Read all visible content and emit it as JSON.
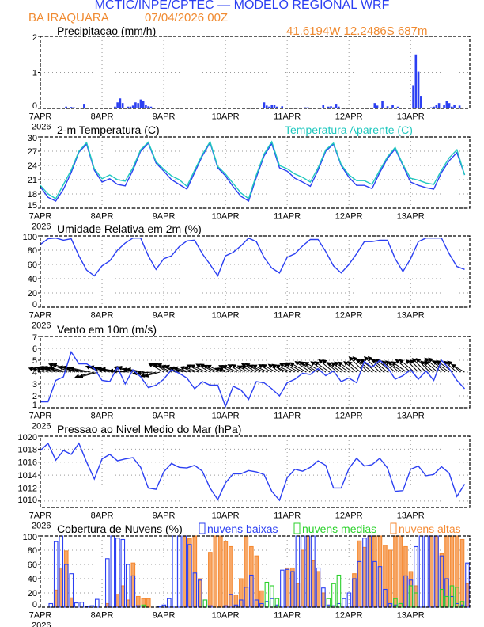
{
  "header": {
    "title": "MCTIC/INPE/CPTEC — MODELO REGIONAL WRF",
    "location": "BA IRAQUARA",
    "run": "07/04/2026 00Z",
    "coords": "41.6194W 12.2486S 687m"
  },
  "x_axis": {
    "days": [
      "7APR",
      "8APR",
      "9APR",
      "10APR",
      "11APR",
      "12APR",
      "13APR"
    ],
    "year": "2026",
    "hours_range": [
      0,
      167
    ]
  },
  "colors": {
    "blue": "#2b3ff2",
    "cyan": "#21c8bf",
    "orange": "#f58a33",
    "green": "#2bd12b",
    "title_blue": "#2b3ff2",
    "title_orange": "#f08a30"
  },
  "chart_data": [
    {
      "type": "bar",
      "title": "Precipitacao (mm/h)",
      "ylabel": "mm/h",
      "ylim": [
        0,
        2
      ],
      "yticks": [
        "0",
        "1",
        "2"
      ],
      "ytick_values": [
        0,
        1,
        2
      ],
      "bars": [
        [
          10,
          0.05
        ],
        [
          12,
          0.04
        ],
        [
          13,
          0.03
        ],
        [
          17,
          0.13
        ],
        [
          29,
          0.05
        ],
        [
          30,
          0.17
        ],
        [
          31,
          0.28
        ],
        [
          32,
          0.15
        ],
        [
          34,
          0.05
        ],
        [
          35,
          0.05
        ],
        [
          36,
          0.08
        ],
        [
          37,
          0.17
        ],
        [
          38,
          0.15
        ],
        [
          39,
          0.25
        ],
        [
          40,
          0.22
        ],
        [
          41,
          0.1
        ],
        [
          42,
          0.06
        ],
        [
          43,
          0.05
        ],
        [
          57,
          0.02
        ],
        [
          62,
          0.02
        ],
        [
          68,
          0.02
        ],
        [
          87,
          0.17
        ],
        [
          88,
          0.08
        ],
        [
          89,
          0.05
        ],
        [
          90,
          0.1
        ],
        [
          91,
          0.1
        ],
        [
          92,
          0.05
        ],
        [
          94,
          0.06
        ],
        [
          103,
          0.03
        ],
        [
          104,
          0.03
        ],
        [
          110,
          0.1
        ],
        [
          112,
          0.05
        ],
        [
          113,
          0.06
        ],
        [
          114,
          0.03
        ],
        [
          115,
          0.13
        ],
        [
          116,
          0.05
        ],
        [
          130,
          0.15
        ],
        [
          131,
          0.08
        ],
        [
          133,
          0.22
        ],
        [
          135,
          0.06
        ],
        [
          137,
          0.1
        ],
        [
          139,
          0.05
        ],
        [
          145,
          0.65
        ],
        [
          146,
          1.5
        ],
        [
          147,
          1.02
        ],
        [
          148,
          0.35
        ],
        [
          152,
          0.03
        ],
        [
          153,
          0.05
        ],
        [
          154,
          0.1
        ],
        [
          155,
          0.15
        ],
        [
          157,
          0.1
        ],
        [
          158,
          0.2
        ],
        [
          159,
          0.15
        ],
        [
          160,
          0.05
        ],
        [
          161,
          0.1
        ],
        [
          163,
          0.08
        ]
      ]
    },
    {
      "type": "line",
      "title": "2-m Temperatura (C)",
      "ylim": [
        15,
        30
      ],
      "yticks": [
        "15",
        "18",
        "21",
        "24",
        "27",
        "30"
      ],
      "ytick_values": [
        15,
        18,
        21,
        24,
        27,
        30
      ],
      "x_step_hours": 3,
      "series": [
        {
          "name": "2-m Temperatura (C)",
          "color": "#2b3ff2",
          "values": [
            19.5,
            17.3,
            16.5,
            19.0,
            22.5,
            26.8,
            28.5,
            23.0,
            20.5,
            21.2,
            20.0,
            19.7,
            23.0,
            27.0,
            28.7,
            24.5,
            22.8,
            21.0,
            20.0,
            19.0,
            22.5,
            26.0,
            28.8,
            23.5,
            21.8,
            19.5,
            17.5,
            16.5,
            21.5,
            26.0,
            28.6,
            23.5,
            22.8,
            21.3,
            20.5,
            19.6,
            23.0,
            27.0,
            28.5,
            24.0,
            21.5,
            19.8,
            19.8,
            19.1,
            22.5,
            25.5,
            27.5,
            24.0,
            20.5,
            19.8,
            19.3,
            19.0,
            22.5,
            25.0,
            26.7,
            22.0
          ]
        },
        {
          "name": "Temperatura Aparente (C)",
          "color": "#21c8bf",
          "values": [
            19.8,
            18.0,
            17.0,
            20.0,
            23.0,
            27.0,
            28.8,
            23.3,
            21.2,
            22.0,
            21.0,
            20.7,
            23.5,
            27.3,
            28.9,
            24.8,
            23.2,
            21.8,
            21.0,
            19.6,
            23.0,
            26.3,
            29.0,
            23.8,
            22.2,
            20.2,
            18.2,
            17.0,
            22.0,
            26.4,
            29.0,
            24.0,
            23.3,
            22.2,
            21.5,
            20.5,
            23.5,
            27.3,
            28.7,
            24.2,
            22.0,
            20.8,
            20.8,
            20.0,
            23.0,
            25.8,
            27.8,
            24.2,
            21.3,
            20.9,
            20.3,
            20.0,
            23.0,
            25.6,
            27.3,
            22.0
          ]
        }
      ],
      "legend": "Temperatura Aparente (C)"
    },
    {
      "type": "line",
      "title": "Umidade Relativa em 2m (%)",
      "ylim": [
        0,
        100
      ],
      "yticks": [
        "0",
        "20",
        "40",
        "60",
        "80",
        "100"
      ],
      "ytick_values": [
        0,
        20,
        40,
        60,
        80,
        100
      ],
      "x_step_hours": 3,
      "series": [
        {
          "name": "Umidade Relativa",
          "color": "#2b3ff2",
          "values": [
            88,
            96,
            97,
            94,
            96,
            72,
            52,
            44,
            58,
            65,
            80,
            90,
            97,
            97,
            72,
            53,
            68,
            72,
            85,
            93,
            94,
            75,
            60,
            44,
            72,
            77,
            86,
            97,
            92,
            70,
            55,
            48,
            70,
            75,
            86,
            95,
            95,
            78,
            58,
            48,
            60,
            75,
            92,
            92,
            94,
            94,
            68,
            50,
            68,
            92,
            97,
            97,
            97,
            75,
            57,
            53
          ]
        }
      ]
    },
    {
      "type": "line",
      "title": "Vento em 10m (m/s)",
      "ylim": [
        1,
        7
      ],
      "yticks": [
        "1",
        "2",
        "3",
        "4",
        "5",
        "6",
        "7"
      ],
      "ytick_values": [
        1,
        2,
        3,
        4,
        5,
        6,
        7
      ],
      "x_step_hours": 3,
      "series": [
        {
          "name": "Velocidade do vento",
          "color": "#2b3ff2",
          "values": [
            1.5,
            1.5,
            3.3,
            3.6,
            5.7,
            4.7,
            4.7,
            4.3,
            3.3,
            3.2,
            4.4,
            3.0,
            4.2,
            3.6,
            2.7,
            2.9,
            3.4,
            4.2,
            3.9,
            3.5,
            2.6,
            3.2,
            2.9,
            2.9,
            1.1,
            2.8,
            2.5,
            1.7,
            3.2,
            3.1,
            2.6,
            2.0,
            3.1,
            3.4,
            3.9,
            3.8,
            4.3,
            3.7,
            4.1,
            3.2,
            3.5,
            3.1,
            4.9,
            4.4,
            5.0,
            4.4,
            3.4,
            3.7,
            4.2,
            3.4,
            4.1,
            3.3,
            5.0,
            4.3,
            3.3,
            2.6
          ]
        }
      ],
      "arrow_direction_deg": [
        160,
        158,
        162,
        165,
        160,
        165,
        168,
        195,
        160,
        165,
        170,
        175,
        165,
        170,
        185,
        195,
        150,
        155,
        160,
        165,
        160,
        155,
        150,
        155,
        160,
        155,
        150,
        150,
        150,
        155,
        150,
        145,
        155,
        150,
        150,
        145,
        150,
        145,
        140,
        145,
        145,
        140,
        135,
        140,
        135,
        140,
        140,
        145,
        140,
        135,
        135,
        140,
        140,
        145,
        140,
        150
      ]
    },
    {
      "type": "line",
      "title": "Pressao ao Nivel Medio do Mar (hPa)",
      "ylim": [
        1009,
        1020
      ],
      "yticks": [
        "1010",
        "1012",
        "1014",
        "1016",
        "1018",
        "1020"
      ],
      "ytick_values": [
        1010,
        1012,
        1014,
        1016,
        1018,
        1020
      ],
      "x_step_hours": 3,
      "series": [
        {
          "name": "Pressao",
          "color": "#2b3ff2",
          "values": [
            1017.8,
            1018.9,
            1016.3,
            1017.8,
            1017.2,
            1018.9,
            1016.0,
            1013.4,
            1016.5,
            1017.2,
            1016.2,
            1016.5,
            1016.7,
            1015.2,
            1012.0,
            1011.8,
            1014.5,
            1015.8,
            1015.2,
            1015.1,
            1015.5,
            1014.6,
            1012.0,
            1010.2,
            1012.8,
            1014.2,
            1014.2,
            1014.7,
            1014.5,
            1014.1,
            1011.5,
            1010.1,
            1013.6,
            1014.9,
            1014.6,
            1015.2,
            1016.2,
            1015.5,
            1012.0,
            1012.0,
            1015.0,
            1016.6,
            1015.4,
            1015.6,
            1016.6,
            1015.1,
            1011.5,
            1011.6,
            1014.9,
            1015.4,
            1013.9,
            1014.1,
            1015.3,
            1014.3,
            1010.7,
            1012.6
          ]
        }
      ]
    },
    {
      "type": "bar",
      "title": "Cobertura de Nuvens (%)",
      "ylim": [
        0,
        100
      ],
      "yticks": [
        "0",
        "20",
        "40",
        "60",
        "80",
        "100"
      ],
      "ytick_values": [
        0,
        20,
        40,
        60,
        80,
        100
      ],
      "x_step_hours": 2,
      "series": [
        {
          "name": "nuvens altas",
          "color": "#f58a33",
          "values": [
            0,
            0,
            0,
            24,
            55,
            79,
            13,
            0,
            0,
            0,
            0,
            0,
            0,
            5,
            0,
            18,
            30,
            10,
            62,
            15,
            12,
            12,
            0,
            0,
            0,
            0,
            0,
            0,
            100,
            96,
            100,
            40,
            0,
            77,
            100,
            100,
            92,
            85,
            17,
            40,
            100,
            85,
            72,
            23,
            0,
            0,
            0,
            0,
            55,
            55,
            33,
            80,
            100,
            65,
            50,
            20,
            0,
            0,
            0,
            0,
            0,
            47,
            93,
            84,
            100,
            100,
            100,
            87,
            80,
            100,
            100,
            85,
            50,
            30,
            0,
            0,
            100,
            100,
            75,
            100,
            100,
            100,
            95,
            33
          ]
        },
        {
          "name": "nuvens baixas",
          "color": "#2b3ff2",
          "values": [
            0,
            0,
            5,
            92,
            100,
            60,
            47,
            6,
            7,
            1,
            2,
            11,
            0,
            68,
            100,
            97,
            95,
            60,
            44,
            2,
            0,
            0,
            0,
            1,
            3,
            12,
            100,
            100,
            100,
            88,
            48,
            38,
            10,
            2,
            0,
            0,
            2,
            18,
            3,
            10,
            28,
            45,
            10,
            5,
            8,
            12,
            3,
            52,
            53,
            50,
            100,
            100,
            100,
            100,
            55,
            27,
            3,
            2,
            5,
            12,
            20,
            40,
            64,
            97,
            100,
            64,
            57,
            25,
            5,
            3,
            5,
            44,
            38,
            85,
            100,
            100,
            100,
            100,
            72,
            40,
            15,
            5,
            3,
            62
          ]
        },
        {
          "name": "nuvens medias",
          "color": "#2bd12b",
          "values": [
            0,
            0,
            0,
            0,
            0,
            0,
            0,
            0,
            0,
            0,
            0,
            0,
            0,
            0,
            0,
            0,
            0,
            0,
            0,
            0,
            3,
            0,
            0,
            0,
            0,
            0,
            0,
            0,
            0,
            0,
            0,
            0,
            10,
            0,
            0,
            0,
            0,
            0,
            0,
            0,
            0,
            0,
            0,
            0,
            35,
            30,
            12,
            0,
            0,
            0,
            0,
            0,
            0,
            0,
            0,
            0,
            12,
            33,
            45,
            0,
            0,
            0,
            0,
            0,
            0,
            0,
            0,
            0,
            0,
            12,
            5,
            0,
            30,
            20,
            0,
            0,
            0,
            0,
            25,
            15,
            30,
            28,
            8,
            0
          ]
        }
      ],
      "legend": [
        "nuvens baixas",
        "nuvens medias",
        "nuvens altas"
      ]
    }
  ]
}
